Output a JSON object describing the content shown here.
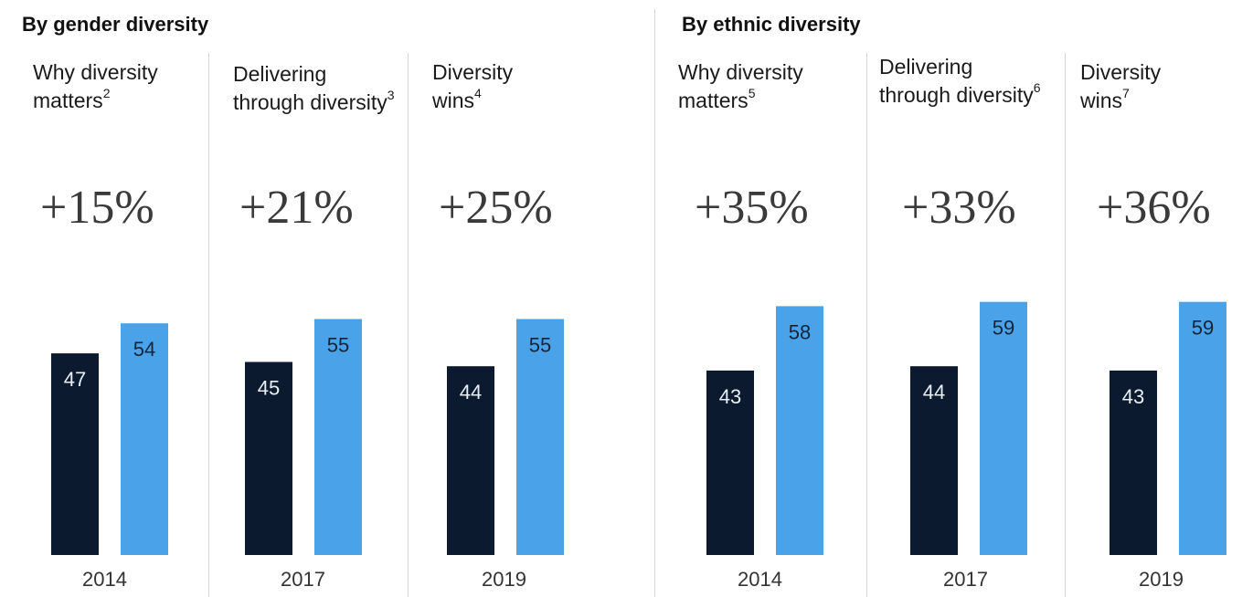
{
  "colors": {
    "dark": "#0b1a2e",
    "light": "#4aa3e8",
    "divider": "#d6d6d6",
    "text": "#1a1a1a"
  },
  "chart_data": [
    {
      "type": "bar",
      "title": "By gender diversity",
      "panels": [
        {
          "title": "Why diversity matters",
          "sup": "2",
          "headline": "+15%",
          "year": "2014",
          "values": [
            47,
            54
          ]
        },
        {
          "title": "Delivering through diversity",
          "sup": "3",
          "headline": "+21%",
          "year": "2017",
          "values": [
            45,
            55
          ]
        },
        {
          "title": "Diversity wins",
          "sup": "4",
          "headline": "+25%",
          "year": "2019",
          "values": [
            44,
            55
          ]
        }
      ]
    },
    {
      "type": "bar",
      "title": "By ethnic diversity",
      "panels": [
        {
          "title": "Why diversity matters",
          "sup": "5",
          "headline": "+35%",
          "year": "2014",
          "values": [
            43,
            58
          ]
        },
        {
          "title": "Delivering through diversity",
          "sup": "6",
          "headline": "+33%",
          "year": "2017",
          "values": [
            44,
            59
          ]
        },
        {
          "title": "Diversity wins",
          "sup": "7",
          "headline": "+36%",
          "year": "2019",
          "values": [
            43,
            59
          ]
        }
      ]
    }
  ]
}
